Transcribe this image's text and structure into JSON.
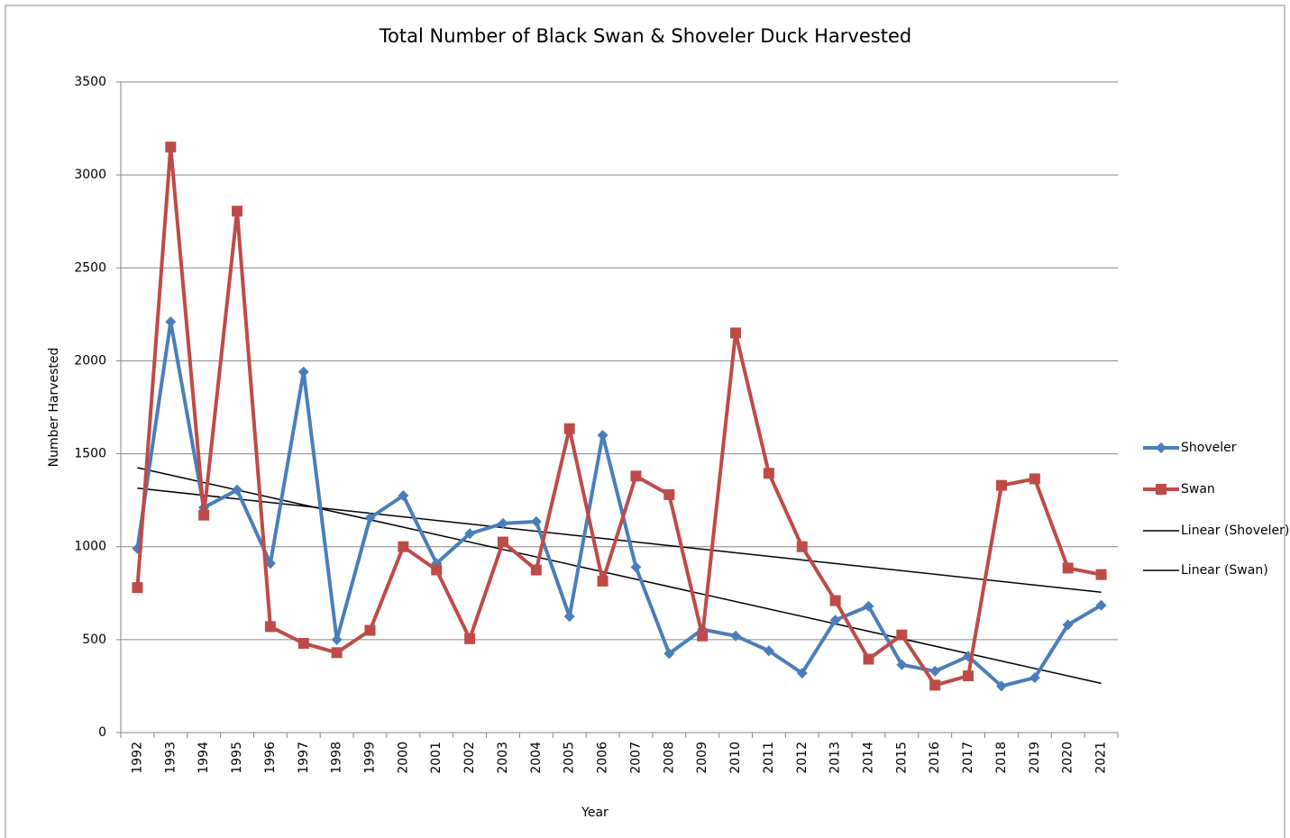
{
  "chart_data": {
    "type": "line",
    "title": "Total Number of Black Swan & Shoveler Duck Harvested",
    "x_label": "Year",
    "y_label": "Number Harvested",
    "categories": [
      "1992",
      "1993",
      "1994",
      "1995",
      "1996",
      "1997",
      "1998",
      "1999",
      "2000",
      "2001",
      "2002",
      "2003",
      "2004",
      "2005",
      "2006",
      "2007",
      "2008",
      "2009",
      "2010",
      "2011",
      "2012",
      "2013",
      "2014",
      "2015",
      "2016",
      "2017",
      "2018",
      "2019",
      "2020",
      "2021"
    ],
    "series": [
      {
        "name": "Shoveler",
        "color": "#4a7ebb",
        "marker": "diamond",
        "values": [
          990,
          2210,
          1210,
          1305,
          910,
          1940,
          500,
          1155,
          1275,
          910,
          1070,
          1125,
          1135,
          625,
          1600,
          890,
          425,
          555,
          520,
          440,
          320,
          605,
          680,
          365,
          330,
          410,
          250,
          295,
          580,
          685
        ]
      },
      {
        "name": "Swan",
        "color": "#be4b48",
        "marker": "square",
        "values": [
          780,
          3150,
          1170,
          2805,
          570,
          480,
          430,
          550,
          1000,
          875,
          505,
          1025,
          875,
          1635,
          815,
          1380,
          1280,
          520,
          2150,
          1395,
          1000,
          710,
          395,
          525,
          255,
          305,
          1330,
          1365,
          885,
          850
        ]
      }
    ],
    "trendlines": [
      {
        "name": "Linear (Shoveler)",
        "color": "#000000",
        "start": 1425,
        "end": 265
      },
      {
        "name": "Linear (Swan)",
        "color": "#000000",
        "start": 1315,
        "end": 755
      }
    ],
    "ylim": [
      0,
      3500
    ],
    "yticks": [
      0,
      500,
      1000,
      1500,
      2000,
      2500,
      3000,
      3500
    ],
    "grid": true,
    "legend": "right"
  }
}
